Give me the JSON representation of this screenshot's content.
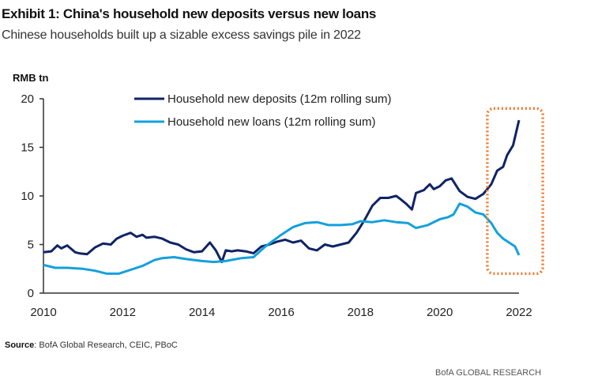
{
  "title": "Exhibit 1: China's household new deposits versus new loans",
  "subtitle": "Chinese households built up a sizable excess savings pile in 2022",
  "source_label": "Source",
  "source_text": ": BofA Global Research, CEIC, PBoC",
  "footer": "BofA GLOBAL RESEARCH",
  "chart_data": {
    "type": "line",
    "ylabel": "RMB tn",
    "xlabel": "",
    "xlim": [
      2010,
      2022
    ],
    "ylim": [
      0,
      20
    ],
    "xticks": [
      2010,
      2012,
      2014,
      2016,
      2018,
      2020,
      2022
    ],
    "yticks": [
      0,
      5,
      10,
      15,
      20
    ],
    "legend_position": "top-center",
    "highlight": {
      "x_range": [
        2021.2,
        2022.6
      ],
      "y_range": [
        2,
        19
      ],
      "color": "#ED7D31",
      "style": "dotted"
    },
    "series": [
      {
        "name": "Household new deposits (12m rolling sum)",
        "color": "#0F2466",
        "x": [
          2010.0,
          2010.2,
          2010.35,
          2010.45,
          2010.6,
          2010.8,
          2010.9,
          2011.1,
          2011.3,
          2011.5,
          2011.7,
          2011.85,
          2012.0,
          2012.2,
          2012.35,
          2012.5,
          2012.6,
          2012.8,
          2013.0,
          2013.2,
          2013.4,
          2013.6,
          2013.8,
          2014.0,
          2014.2,
          2014.35,
          2014.5,
          2014.6,
          2014.75,
          2014.9,
          2015.1,
          2015.3,
          2015.5,
          2015.7,
          2015.9,
          2016.1,
          2016.3,
          2016.5,
          2016.7,
          2016.9,
          2017.1,
          2017.3,
          2017.5,
          2017.7,
          2017.9,
          2018.1,
          2018.3,
          2018.5,
          2018.7,
          2018.9,
          2019.0,
          2019.15,
          2019.3,
          2019.4,
          2019.6,
          2019.75,
          2019.85,
          2020.0,
          2020.15,
          2020.3,
          2020.5,
          2020.7,
          2020.9,
          2021.1,
          2021.3,
          2021.45,
          2021.6,
          2021.7,
          2021.85,
          2022.0
        ],
        "values": [
          4.2,
          4.3,
          4.9,
          4.6,
          4.9,
          4.2,
          4.1,
          4.0,
          4.7,
          5.1,
          5.0,
          5.6,
          5.9,
          6.2,
          5.8,
          6.0,
          5.7,
          5.8,
          5.6,
          5.2,
          5.0,
          4.5,
          4.2,
          4.3,
          5.2,
          4.4,
          3.2,
          4.4,
          4.3,
          4.4,
          4.3,
          4.1,
          4.8,
          5.0,
          5.3,
          5.5,
          5.2,
          5.4,
          4.6,
          4.4,
          5.0,
          4.8,
          5.0,
          5.2,
          6.2,
          7.5,
          9.0,
          9.8,
          9.8,
          10.0,
          9.7,
          9.2,
          8.6,
          10.3,
          10.6,
          11.2,
          10.7,
          11.0,
          11.6,
          11.8,
          10.5,
          9.9,
          9.7,
          10.2,
          11.2,
          12.6,
          13.0,
          14.2,
          15.2,
          17.8
        ]
      },
      {
        "name": "Household new loans (12m rolling sum)",
        "color": "#14A0DC",
        "x": [
          2010.0,
          2010.3,
          2010.6,
          2011.0,
          2011.3,
          2011.6,
          2011.9,
          2012.2,
          2012.5,
          2012.8,
          2013.0,
          2013.3,
          2013.6,
          2014.0,
          2014.3,
          2014.6,
          2015.0,
          2015.3,
          2015.6,
          2016.0,
          2016.3,
          2016.6,
          2016.9,
          2017.2,
          2017.5,
          2017.8,
          2018.0,
          2018.3,
          2018.6,
          2018.9,
          2019.2,
          2019.4,
          2019.7,
          2020.0,
          2020.2,
          2020.35,
          2020.5,
          2020.7,
          2020.9,
          2021.1,
          2021.3,
          2021.45,
          2021.6,
          2021.75,
          2021.9,
          2022.0
        ],
        "values": [
          2.9,
          2.6,
          2.6,
          2.5,
          2.3,
          2.0,
          2.0,
          2.4,
          2.8,
          3.4,
          3.6,
          3.7,
          3.5,
          3.3,
          3.2,
          3.3,
          3.6,
          3.7,
          4.8,
          6.0,
          6.8,
          7.2,
          7.3,
          7.0,
          7.0,
          7.1,
          7.4,
          7.3,
          7.5,
          7.3,
          7.2,
          6.7,
          7.0,
          7.6,
          7.8,
          8.1,
          9.2,
          8.9,
          8.3,
          8.1,
          7.2,
          6.2,
          5.6,
          5.2,
          4.8,
          3.9
        ]
      }
    ]
  }
}
